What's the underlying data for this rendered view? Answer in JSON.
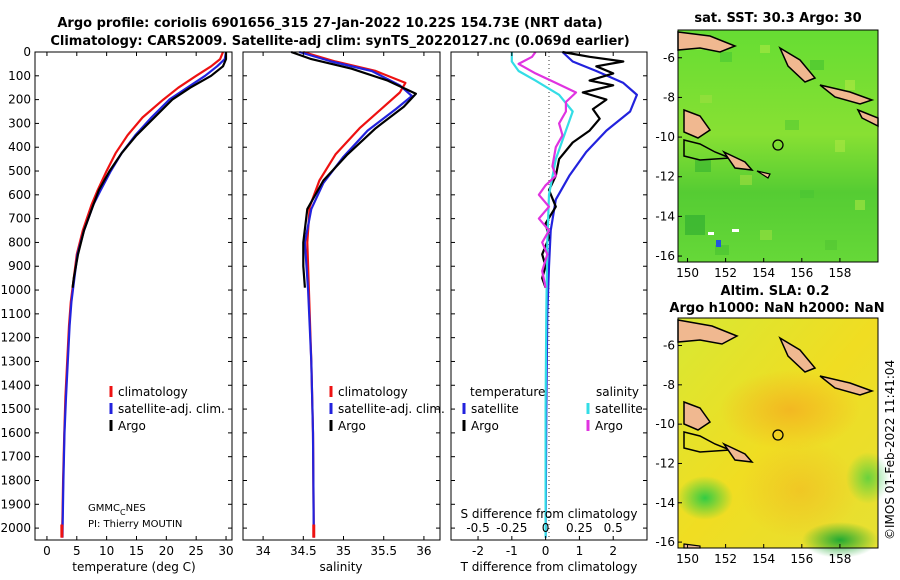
{
  "header": {
    "title_line1": "Argo profile: coriolis 6901656_315 27-Jan-2022 10.22S 154.73E (NRT data)",
    "title_line2": "Climatology: CARS2009. Satellite-adj clim: synTS_20220127.nc (0.069d earlier)"
  },
  "colors": {
    "climatology": "#ee1111",
    "satellite": "#2222dd",
    "argo": "#000000",
    "salinity_satellite": "#33dde6",
    "salinity_argo": "#e033e0"
  },
  "depth_axis": {
    "min": 0,
    "max": 2050,
    "ticks": [
      0,
      100,
      200,
      300,
      400,
      500,
      600,
      700,
      800,
      900,
      1000,
      1100,
      1200,
      1300,
      1400,
      1500,
      1600,
      1700,
      1800,
      1900,
      2000
    ]
  },
  "chart_data": [
    {
      "type": "line",
      "name": "temperature",
      "xlabel": "temperature (deg C)",
      "xlim": [
        -2,
        31
      ],
      "xticks": [
        0,
        5,
        10,
        15,
        20,
        25,
        30
      ],
      "legend": {
        "placement": "center-right",
        "entries": [
          "climatology",
          "satellite-adj. clim.",
          "Argo"
        ]
      },
      "annotation": [
        "GMMC",
        "C",
        "NES",
        "PI: Thierry MOUTIN"
      ],
      "series": [
        {
          "name": "climatology",
          "color_key": "climatology",
          "points": [
            [
              29.5,
              0
            ],
            [
              29.0,
              30
            ],
            [
              27.5,
              60
            ],
            [
              25.0,
              100
            ],
            [
              22.0,
              150
            ],
            [
              19.5,
              200
            ],
            [
              16.0,
              275
            ],
            [
              13.5,
              350
            ],
            [
              11.5,
              425
            ],
            [
              10.0,
              500
            ],
            [
              8.5,
              580
            ],
            [
              7.5,
              640
            ],
            [
              6.0,
              750
            ],
            [
              5.0,
              850
            ],
            [
              4.5,
              950
            ],
            [
              4.0,
              1050
            ],
            [
              3.7,
              1150
            ],
            [
              3.4,
              1300
            ],
            [
              3.1,
              1450
            ],
            [
              2.9,
              1600
            ],
            [
              2.7,
              1800
            ],
            [
              2.6,
              1950
            ],
            [
              2.5,
              2040
            ]
          ]
        },
        {
          "name": "satellite-adj. clim.",
          "color_key": "satellite",
          "points": [
            [
              30.0,
              0
            ],
            [
              29.8,
              30
            ],
            [
              28.5,
              60
            ],
            [
              26.5,
              100
            ],
            [
              23.5,
              150
            ],
            [
              20.5,
              200
            ],
            [
              17.5,
              275
            ],
            [
              14.8,
              350
            ],
            [
              12.5,
              425
            ],
            [
              10.7,
              500
            ],
            [
              9.0,
              580
            ],
            [
              7.8,
              640
            ],
            [
              6.2,
              750
            ],
            [
              5.1,
              850
            ],
            [
              4.6,
              950
            ],
            [
              4.1,
              1050
            ],
            [
              3.8,
              1150
            ],
            [
              3.5,
              1300
            ],
            [
              3.2,
              1450
            ],
            [
              2.95,
              1600
            ],
            [
              2.75,
              1800
            ],
            [
              2.65,
              1950
            ],
            [
              2.6,
              2040
            ]
          ]
        },
        {
          "name": "Argo",
          "color_key": "argo",
          "points": [
            [
              30.0,
              0
            ],
            [
              30.0,
              30
            ],
            [
              29.5,
              60
            ],
            [
              27.5,
              100
            ],
            [
              24.0,
              150
            ],
            [
              21.0,
              200
            ],
            [
              18.0,
              275
            ],
            [
              15.0,
              350
            ],
            [
              12.5,
              425
            ],
            [
              10.5,
              500
            ],
            [
              8.7,
              580
            ],
            [
              7.8,
              640
            ],
            [
              6.2,
              750
            ],
            [
              5.2,
              850
            ],
            [
              4.5,
              950
            ],
            [
              4.3,
              990
            ]
          ]
        }
      ]
    },
    {
      "type": "line",
      "name": "salinity",
      "xlabel": "salinity",
      "xlim": [
        33.75,
        36.2
      ],
      "xticks": [
        34,
        34.5,
        35,
        35.5,
        36
      ],
      "legend": {
        "placement": "center-right",
        "entries": [
          "climatology",
          "satellite-adj. clim.",
          "Argo"
        ]
      },
      "series": [
        {
          "name": "climatology",
          "color_key": "climatology",
          "points": [
            [
              34.5,
              0
            ],
            [
              34.9,
              40
            ],
            [
              35.4,
              80
            ],
            [
              35.77,
              130
            ],
            [
              35.7,
              170
            ],
            [
              35.5,
              230
            ],
            [
              35.2,
              320
            ],
            [
              34.9,
              430
            ],
            [
              34.7,
              540
            ],
            [
              34.58,
              650
            ],
            [
              34.55,
              800
            ],
            [
              34.57,
              1000
            ],
            [
              34.6,
              1300
            ],
            [
              34.62,
              1600
            ],
            [
              34.63,
              2040
            ]
          ]
        },
        {
          "name": "satellite-adj. clim.",
          "color_key": "satellite",
          "points": [
            [
              34.45,
              0
            ],
            [
              34.85,
              40
            ],
            [
              35.35,
              80
            ],
            [
              35.7,
              140
            ],
            [
              35.85,
              185
            ],
            [
              35.65,
              240
            ],
            [
              35.3,
              330
            ],
            [
              35.0,
              440
            ],
            [
              34.75,
              550
            ],
            [
              34.6,
              660
            ],
            [
              34.52,
              800
            ],
            [
              34.56,
              1000
            ],
            [
              34.6,
              1300
            ],
            [
              34.62,
              1600
            ],
            [
              34.63,
              2040
            ]
          ]
        },
        {
          "name": "Argo",
          "color_key": "argo",
          "points": [
            [
              34.35,
              0
            ],
            [
              34.6,
              30
            ],
            [
              35.1,
              70
            ],
            [
              35.55,
              120
            ],
            [
              35.9,
              175
            ],
            [
              35.75,
              230
            ],
            [
              35.4,
              320
            ],
            [
              35.05,
              430
            ],
            [
              34.75,
              540
            ],
            [
              34.55,
              660
            ],
            [
              34.5,
              800
            ],
            [
              34.5,
              900
            ],
            [
              34.52,
              990
            ]
          ]
        }
      ]
    },
    {
      "type": "line",
      "name": "differences",
      "xlabel": "T difference from climatology",
      "xlim": [
        -2.8,
        3.0
      ],
      "xticks": [
        -2,
        -1,
        0,
        1,
        2
      ],
      "xlabel_secondary": "S difference from climatology",
      "xticks_secondary": [
        "-0.5",
        "-0.25",
        "0",
        "0.25",
        "0.5"
      ],
      "legend": {
        "placement": "center",
        "temperature_heading": "temperature",
        "salinity_heading": "salinity",
        "entries": [
          "satellite",
          "Argo",
          "satellite",
          "Argo"
        ]
      },
      "series": [
        {
          "name": "temperature satellite",
          "color_key": "satellite",
          "points": [
            [
              0.5,
              0
            ],
            [
              0.8,
              40
            ],
            [
              1.5,
              80
            ],
            [
              2.3,
              130
            ],
            [
              2.7,
              180
            ],
            [
              2.5,
              250
            ],
            [
              1.8,
              330
            ],
            [
              1.2,
              420
            ],
            [
              0.7,
              520
            ],
            [
              0.3,
              620
            ],
            [
              0.15,
              750
            ],
            [
              0.1,
              900
            ],
            [
              0.05,
              1100
            ],
            [
              0.02,
              1500
            ],
            [
              0,
              2040
            ]
          ]
        },
        {
          "name": "temperature Argo",
          "color_key": "argo",
          "points": [
            [
              0.5,
              0
            ],
            [
              1.3,
              20
            ],
            [
              2.3,
              40
            ],
            [
              1.5,
              60
            ],
            [
              2.0,
              90
            ],
            [
              1.3,
              120
            ],
            [
              2.0,
              140
            ],
            [
              1.1,
              170
            ],
            [
              1.8,
              200
            ],
            [
              1.4,
              240
            ],
            [
              1.6,
              280
            ],
            [
              1.3,
              330
            ],
            [
              0.8,
              380
            ],
            [
              0.4,
              450
            ],
            [
              0.3,
              520
            ],
            [
              0.1,
              580
            ],
            [
              0.3,
              650
            ],
            [
              0.0,
              720
            ],
            [
              0.1,
              780
            ],
            [
              -0.1,
              850
            ],
            [
              0.0,
              900
            ],
            [
              -0.1,
              950
            ],
            [
              0.0,
              990
            ]
          ]
        },
        {
          "name": "salinity satellite",
          "color_key": "salinity_satellite",
          "points": [
            [
              -1.0,
              0
            ],
            [
              -1.0,
              40
            ],
            [
              -0.8,
              80
            ],
            [
              -0.3,
              120
            ],
            [
              0.4,
              180
            ],
            [
              0.8,
              250
            ],
            [
              0.6,
              330
            ],
            [
              0.3,
              450
            ],
            [
              0.1,
              600
            ],
            [
              0.05,
              800
            ],
            [
              0.02,
              1100
            ],
            [
              0.0,
              1500
            ],
            [
              0,
              2040
            ]
          ]
        },
        {
          "name": "salinity Argo",
          "color_key": "salinity_argo",
          "points": [
            [
              -0.3,
              0
            ],
            [
              -0.4,
              20
            ],
            [
              -0.8,
              50
            ],
            [
              -0.3,
              90
            ],
            [
              0.3,
              130
            ],
            [
              0.9,
              170
            ],
            [
              0.6,
              210
            ],
            [
              0.6,
              250
            ],
            [
              0.4,
              300
            ],
            [
              0.5,
              350
            ],
            [
              0.3,
              400
            ],
            [
              0.2,
              480
            ],
            [
              0.3,
              520
            ],
            [
              0.0,
              560
            ],
            [
              -0.2,
              600
            ],
            [
              0.1,
              650
            ],
            [
              -0.2,
              700
            ],
            [
              0.1,
              750
            ],
            [
              -0.1,
              800
            ],
            [
              0.05,
              850
            ],
            [
              -0.1,
              920
            ],
            [
              0.0,
              990
            ]
          ]
        }
      ]
    },
    {
      "type": "heatmap",
      "name": "satellite SST map",
      "title": "sat. SST: 30.3  Argo: 30",
      "xlim": [
        149.5,
        160
      ],
      "ylim": [
        -16.3,
        -4.6
      ],
      "xticks": [
        150,
        152,
        154,
        156,
        158
      ],
      "yticks": [
        -6,
        -8,
        -10,
        -12,
        -14,
        -16
      ],
      "marker": {
        "lon": 154.73,
        "lat": -10.22
      }
    },
    {
      "type": "heatmap",
      "name": "altimetry SLA map",
      "title_line1": "Altim. SLA: 0.2",
      "title_line2": "Argo h1000: NaN h2000: NaN",
      "xlim": [
        149.5,
        160
      ],
      "ylim": [
        -16.3,
        -4.6
      ],
      "xticks": [
        150,
        152,
        154,
        156,
        158
      ],
      "yticks": [
        -6,
        -8,
        -10,
        -12,
        -14,
        -16
      ],
      "marker": {
        "lon": 154.73,
        "lat": -10.22
      }
    }
  ],
  "footer": {
    "credit": "©IMOS 01-Feb-2022 11:41:04"
  }
}
